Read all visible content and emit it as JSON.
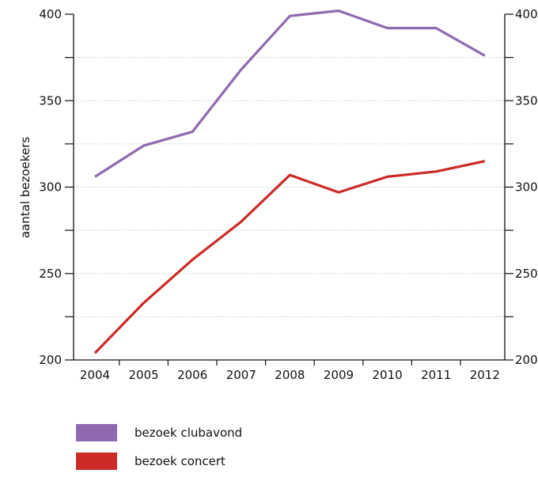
{
  "chart_data": {
    "type": "line",
    "title": "",
    "xlabel": "",
    "ylabel": "aantal bezoekers",
    "x": [
      "2004",
      "2005",
      "2006",
      "2007",
      "2008",
      "2009",
      "2010",
      "2011",
      "2012"
    ],
    "ylim": [
      200,
      400
    ],
    "yticks": [
      "200",
      "250",
      "300",
      "350",
      "400"
    ],
    "grid": "horizontal dotted",
    "right_axis": true,
    "legend_position": "bottom-left",
    "series": [
      {
        "name": "bezoek clubavond",
        "color": "#8e6bb0",
        "values": [
          306,
          324,
          332,
          368,
          399,
          402,
          392,
          392,
          376
        ]
      },
      {
        "name": "bezoek concert",
        "color": "#cc2a27",
        "values": [
          204,
          233,
          258,
          280,
          307,
          297,
          306,
          309,
          315
        ]
      }
    ]
  }
}
